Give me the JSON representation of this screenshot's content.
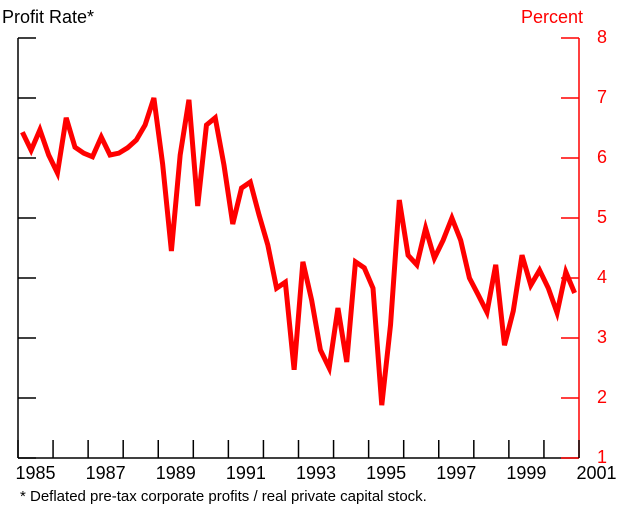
{
  "chart_data": {
    "type": "line",
    "title": "Profit Rate*",
    "y_label": "Percent",
    "footnote": "* Deflated pre-tax corporate profits / real private capital stock.",
    "x": [
      1985.125,
      1985.375,
      1985.625,
      1985.875,
      1986.125,
      1986.375,
      1986.625,
      1986.875,
      1987.125,
      1987.375,
      1987.625,
      1987.875,
      1988.125,
      1988.375,
      1988.625,
      1988.875,
      1989.125,
      1989.375,
      1989.625,
      1989.875,
      1990.125,
      1990.375,
      1990.625,
      1990.875,
      1991.125,
      1991.375,
      1991.625,
      1991.875,
      1992.125,
      1992.375,
      1992.625,
      1992.875,
      1993.125,
      1993.375,
      1993.625,
      1993.875,
      1994.125,
      1994.375,
      1994.625,
      1994.875,
      1995.125,
      1995.375,
      1995.625,
      1995.875,
      1996.125,
      1996.375,
      1996.625,
      1996.875,
      1997.125,
      1997.375,
      1997.625,
      1997.875,
      1998.125,
      1998.375,
      1998.625,
      1998.875,
      1999.125,
      1999.375,
      1999.625,
      1999.875,
      2000.125,
      2000.375,
      2000.625,
      2000.875
    ],
    "series": [
      {
        "color": "#ff0000",
        "values": [
          6.43,
          6.13,
          6.47,
          6.05,
          5.75,
          6.67,
          6.18,
          6.08,
          6.02,
          6.35,
          6.05,
          6.08,
          6.17,
          6.3,
          6.55,
          7.0,
          5.9,
          4.45,
          6.05,
          6.97,
          5.2,
          6.55,
          6.67,
          5.88,
          4.9,
          5.5,
          5.6,
          5.05,
          4.55,
          3.83,
          3.93,
          2.47,
          4.27,
          3.63,
          2.8,
          2.5,
          3.5,
          2.6,
          4.27,
          4.17,
          3.83,
          1.88,
          3.22,
          5.3,
          4.38,
          4.22,
          4.83,
          4.33,
          4.63,
          5.0,
          4.63,
          4.0,
          3.72,
          3.43,
          4.22,
          2.88,
          3.45,
          4.38,
          3.88,
          4.13,
          3.83,
          3.42,
          4.1,
          3.75
        ]
      }
    ],
    "xlim": [
      1985,
      2001
    ],
    "xticks": [
      1985,
      1986,
      1987,
      1988,
      1989,
      1990,
      1991,
      1992,
      1993,
      1994,
      1995,
      1996,
      1997,
      1998,
      1999,
      2000,
      2001
    ],
    "xtick_labels": [
      {
        "value": 1985.5,
        "label": "1985"
      },
      {
        "value": 1987.5,
        "label": "1987"
      },
      {
        "value": 1989.5,
        "label": "1989"
      },
      {
        "value": 1991.5,
        "label": "1991"
      },
      {
        "value": 1993.5,
        "label": "1993"
      },
      {
        "value": 1995.5,
        "label": "1995"
      },
      {
        "value": 1997.5,
        "label": "1997"
      },
      {
        "value": 1999.5,
        "label": "1999"
      },
      {
        "value": 2001.5,
        "label": "2001"
      }
    ],
    "ylim": [
      1,
      8
    ],
    "yticks": [
      1,
      2,
      3,
      4,
      5,
      6,
      7,
      8
    ],
    "axis_color": "#ff0000"
  }
}
